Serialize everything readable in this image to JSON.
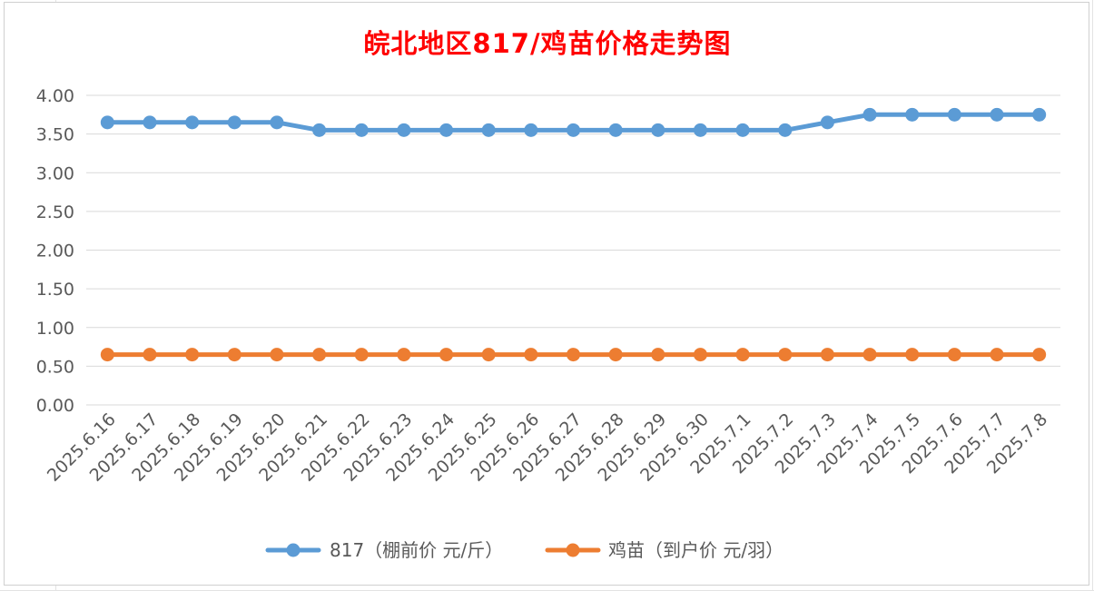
{
  "chart_data": {
    "type": "line",
    "title": "皖北地区817/鸡苗价格走势图",
    "categories": [
      "2025.6.16",
      "2025.6.17",
      "2025.6.18",
      "2025.6.19",
      "2025.6.20",
      "2025.6.21",
      "2025.6.22",
      "2025.6.23",
      "2025.6.24",
      "2025.6.25",
      "2025.6.26",
      "2025.6.27",
      "2025.6.28",
      "2025.6.29",
      "2025.6.30",
      "2025.7.1",
      "2025.7.2",
      "2025.7.3",
      "2025.7.4",
      "2025.7.5",
      "2025.7.6",
      "2025.7.7",
      "2025.7.8"
    ],
    "series": [
      {
        "name": "817（棚前价 元/斤）",
        "color": "#5b9bd5",
        "values": [
          3.65,
          3.65,
          3.65,
          3.65,
          3.65,
          3.55,
          3.55,
          3.55,
          3.55,
          3.55,
          3.55,
          3.55,
          3.55,
          3.55,
          3.55,
          3.55,
          3.55,
          3.65,
          3.75,
          3.75,
          3.75,
          3.75,
          3.75
        ]
      },
      {
        "name": "鸡苗（到户价 元/羽）",
        "color": "#ed7d31",
        "values": [
          0.65,
          0.65,
          0.65,
          0.65,
          0.65,
          0.65,
          0.65,
          0.65,
          0.65,
          0.65,
          0.65,
          0.65,
          0.65,
          0.65,
          0.65,
          0.65,
          0.65,
          0.65,
          0.65,
          0.65,
          0.65,
          0.65,
          0.65
        ]
      }
    ],
    "ylim": [
      0,
      4
    ],
    "yticks": [
      "0.00",
      "0.50",
      "1.00",
      "1.50",
      "2.00",
      "2.50",
      "3.00",
      "3.50",
      "4.00"
    ],
    "grid": true,
    "legend_position": "bottom",
    "xlabel": "",
    "ylabel": ""
  }
}
